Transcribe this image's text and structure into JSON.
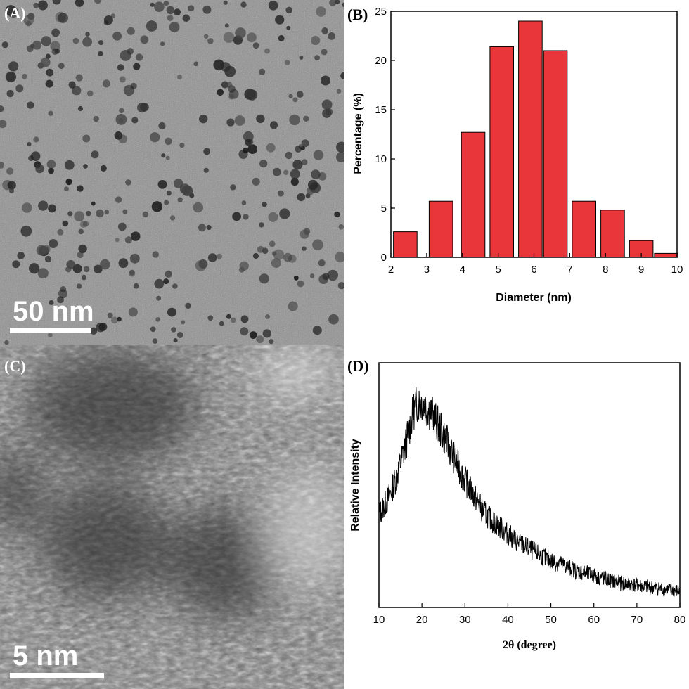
{
  "panels": {
    "a": {
      "label": "(A)",
      "scalebar": "50 nm",
      "description": "TEM image of dispersed dark nanoparticles"
    },
    "c": {
      "label": "(C)",
      "scalebar": "5 nm",
      "description": "HRTEM image of nanoparticle lattice"
    }
  },
  "chart_data": [
    {
      "panel_label": "(B)",
      "type": "bar",
      "x": [
        2.4,
        3.4,
        4.3,
        5.1,
        5.9,
        6.6,
        7.4,
        8.2,
        9.0,
        9.7
      ],
      "values": [
        2.6,
        5.7,
        12.7,
        21.4,
        24.0,
        21.0,
        5.7,
        4.8,
        1.7,
        0.4
      ],
      "xlabel": "Diameter (nm)",
      "ylabel": "Percentage (%)",
      "xlim": [
        2,
        10
      ],
      "ylim": [
        0,
        25
      ],
      "xticks": [
        2,
        3,
        4,
        5,
        6,
        7,
        8,
        9,
        10
      ],
      "yticks": [
        0,
        5,
        10,
        15,
        20,
        25
      ],
      "bar_color": "#e8363a",
      "grid": false
    },
    {
      "panel_label": "(D)",
      "type": "line",
      "x": [
        10,
        12,
        14,
        16,
        18,
        19,
        20,
        22,
        24,
        26,
        28,
        30,
        32,
        34,
        36,
        38,
        40,
        42,
        44,
        46,
        48,
        50,
        52,
        54,
        56,
        58,
        60,
        62,
        64,
        66,
        68,
        70,
        72,
        74,
        76,
        78,
        80
      ],
      "values": [
        0.38,
        0.44,
        0.53,
        0.65,
        0.8,
        0.84,
        0.84,
        0.8,
        0.74,
        0.67,
        0.59,
        0.52,
        0.46,
        0.4,
        0.36,
        0.33,
        0.3,
        0.27,
        0.25,
        0.23,
        0.21,
        0.19,
        0.18,
        0.165,
        0.15,
        0.14,
        0.13,
        0.12,
        0.11,
        0.1,
        0.095,
        0.09,
        0.085,
        0.08,
        0.075,
        0.07,
        0.065
      ],
      "xlabel": "2θ (degree)",
      "ylabel": "Relative Intensity",
      "xlim": [
        10,
        80
      ],
      "ylim": [
        0,
        1
      ],
      "xticks": [
        10,
        20,
        30,
        40,
        50,
        60,
        70,
        80
      ],
      "line_color": "#000000",
      "grid": false
    }
  ]
}
